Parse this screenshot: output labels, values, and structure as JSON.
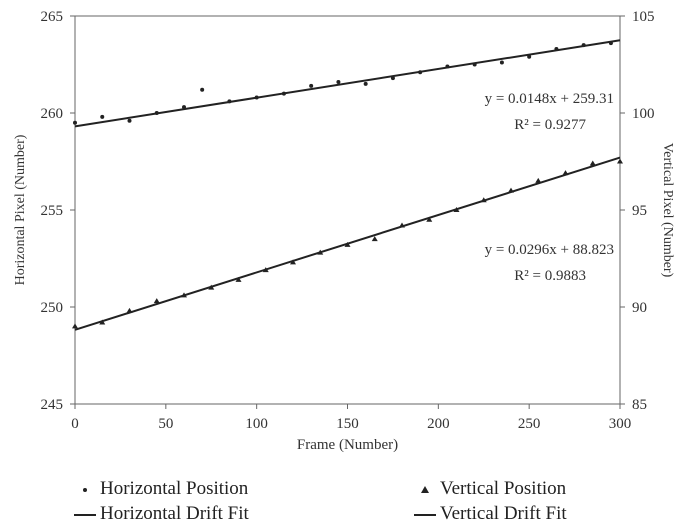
{
  "chart_data": {
    "type": "scatter",
    "xlabel": "Frame (Number)",
    "ylabel_left": "Horizontal Pixel (Number)",
    "ylabel_right": "Vertical Pixel (Number)",
    "xlim": [
      0,
      300
    ],
    "ylim_left": [
      245,
      265
    ],
    "ylim_right": [
      85,
      105
    ],
    "x_ticks": [
      "0",
      "50",
      "100",
      "150",
      "200",
      "250",
      "300"
    ],
    "y_ticks_left": [
      "245",
      "250",
      "255",
      "260",
      "265"
    ],
    "y_ticks_right": [
      "85",
      "90",
      "95",
      "100",
      "105"
    ],
    "grid": false,
    "legend_position": "bottom",
    "series": [
      {
        "name": "Horizontal Position",
        "axis": "left",
        "marker": "dot",
        "x": [
          0,
          15,
          30,
          45,
          60,
          70,
          85,
          100,
          115,
          130,
          145,
          160,
          175,
          190,
          205,
          220,
          235,
          250,
          265,
          280,
          295
        ],
        "y": [
          259.5,
          259.8,
          259.6,
          260.0,
          260.3,
          261.2,
          260.6,
          260.8,
          261.0,
          261.4,
          261.6,
          261.5,
          261.8,
          262.1,
          262.4,
          262.5,
          262.6,
          262.9,
          263.3,
          263.5,
          263.6
        ]
      },
      {
        "name": "Vertical Position",
        "axis": "right",
        "marker": "triangle",
        "x": [
          0,
          15,
          30,
          45,
          60,
          75,
          90,
          105,
          120,
          135,
          150,
          165,
          180,
          195,
          210,
          225,
          240,
          255,
          270,
          285,
          300
        ],
        "y": [
          89.0,
          89.2,
          89.8,
          90.3,
          90.6,
          91.0,
          91.4,
          91.9,
          92.3,
          92.8,
          93.2,
          93.5,
          94.2,
          94.5,
          95.0,
          95.5,
          96.0,
          96.5,
          96.9,
          97.4,
          97.5
        ]
      },
      {
        "name": "Horizontal Drift Fit",
        "axis": "left",
        "type": "line",
        "equation": "y = 0.0148x + 259.31",
        "r2": "R² = 0.9277",
        "slope": 0.0148,
        "intercept": 259.31
      },
      {
        "name": "Vertical Drift Fit",
        "axis": "right",
        "type": "line",
        "equation": "y = 0.0296x + 88.823",
        "r2": "R² = 0.9883",
        "slope": 0.0296,
        "intercept": 88.823
      }
    ]
  },
  "legend": {
    "horizontal_position": "Horizontal Position",
    "vertical_position": "Vertical Position",
    "horizontal_fit": "Horizontal Drift Fit",
    "vertical_fit": "Vertical Drift Fit"
  }
}
